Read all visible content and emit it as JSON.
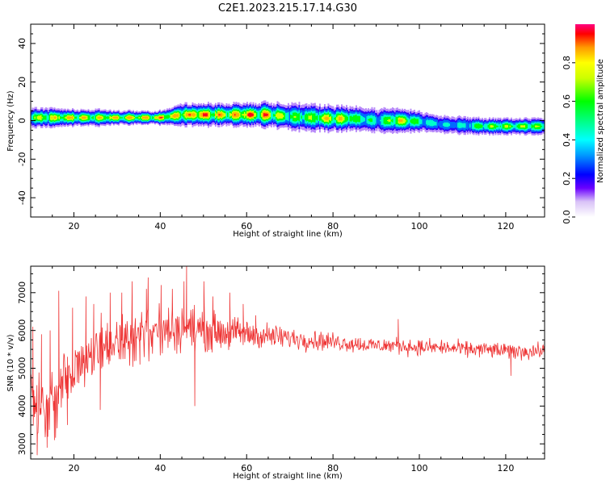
{
  "figure_title": "C2E1.2023.215.17.14.G30",
  "chart_data": [
    {
      "type": "heatmap",
      "title": "",
      "xlabel": "Height of straight line (km)",
      "ylabel": "Frequency (Hz)",
      "xlim": [
        10,
        129
      ],
      "ylim": [
        -50,
        50
      ],
      "xticks": [
        20,
        40,
        60,
        80,
        100,
        120
      ],
      "yticks": [
        -40,
        -20,
        0,
        20,
        40
      ],
      "ridge": {
        "name": "",
        "x": [
          10,
          15,
          20,
          25,
          30,
          35,
          40,
          45,
          50,
          55,
          60,
          65,
          70,
          75,
          80,
          85,
          90,
          95,
          100,
          105,
          110,
          115,
          120,
          125,
          129
        ],
        "freq": [
          1.5,
          1.5,
          1.5,
          1.5,
          1.5,
          1.5,
          1.5,
          3,
          3,
          3,
          3,
          3,
          2,
          1.5,
          1,
          1,
          0,
          0,
          -0.5,
          -2,
          -2.5,
          -3,
          -3,
          -3,
          -3
        ],
        "amplitude": [
          0.8,
          0.85,
          0.9,
          0.85,
          0.9,
          0.9,
          0.95,
          0.9,
          1.0,
          0.9,
          1.0,
          0.95,
          0.7,
          0.75,
          0.95,
          0.7,
          0.55,
          0.9,
          0.6,
          0.45,
          0.5,
          0.75,
          0.75,
          0.75,
          0.7
        ],
        "width": [
          3.5,
          3.5,
          3.0,
          3.0,
          2.5,
          2.5,
          2.5,
          4.0,
          4.0,
          4.0,
          4.0,
          4.5,
          5.0,
          5.0,
          4.5,
          4.5,
          4.5,
          4.5,
          4.0,
          3.5,
          3.5,
          3.0,
          3.0,
          3.0,
          3.0
        ]
      },
      "colorbar": {
        "label": "Normalized spectral amplitude",
        "ticks": [
          0.0,
          0.2,
          0.4,
          0.6,
          0.8
        ],
        "range": [
          0,
          1
        ]
      }
    },
    {
      "type": "line",
      "title": "",
      "xlabel": "Height of straight line (km)",
      "ylabel": "SNR (10 * v/v)",
      "xlim": [
        10,
        129
      ],
      "ylim": [
        2600,
        7700
      ],
      "xticks": [
        20,
        40,
        60,
        80,
        100,
        120
      ],
      "yticks": [
        3000,
        4000,
        5000,
        6000,
        7000
      ],
      "color": "#ee3333",
      "series": [
        {
          "name": "",
          "x": [
            10,
            12,
            14,
            16,
            18,
            20,
            22,
            24,
            26,
            28,
            30,
            32,
            34,
            36,
            38,
            40,
            42,
            44,
            46,
            48,
            50,
            55,
            60,
            65,
            70,
            75,
            80,
            85,
            90,
            95,
            100,
            105,
            110,
            115,
            120,
            125,
            129
          ],
          "mean": [
            4600,
            4000,
            3800,
            4200,
            4700,
            5000,
            5300,
            5400,
            5500,
            5600,
            5700,
            5800,
            5850,
            5900,
            5950,
            6000,
            6000,
            6050,
            6100,
            6050,
            6000,
            5950,
            5900,
            5850,
            5800,
            5750,
            5700,
            5650,
            5600,
            5600,
            5550,
            5550,
            5500,
            5500,
            5450,
            5450,
            5450
          ],
          "spread": [
            500,
            700,
            700,
            700,
            600,
            550,
            550,
            550,
            550,
            550,
            550,
            550,
            550,
            500,
            500,
            500,
            500,
            450,
            450,
            450,
            400,
            350,
            300,
            250,
            220,
            200,
            180,
            170,
            160,
            160,
            160,
            160,
            160,
            160,
            160,
            160,
            160
          ],
          "spikes": [
            [
              10.5,
              6100
            ],
            [
              11.5,
              2700
            ],
            [
              12.5,
              5900
            ],
            [
              13.8,
              2900
            ],
            [
              14.5,
              6000
            ],
            [
              15.5,
              3100
            ],
            [
              16.5,
              7050
            ],
            [
              18.5,
              3500
            ],
            [
              19.7,
              6600
            ],
            [
              22.8,
              6900
            ],
            [
              24.6,
              6700
            ],
            [
              26.1,
              3900
            ],
            [
              28.4,
              7000
            ],
            [
              31.1,
              7000
            ],
            [
              33.5,
              7300
            ],
            [
              35.3,
              5100
            ],
            [
              36.8,
              7100
            ],
            [
              37.2,
              7400
            ],
            [
              40.2,
              7200
            ],
            [
              42.8,
              7100
            ],
            [
              45.5,
              7300
            ],
            [
              46.1,
              7700
            ],
            [
              47.3,
              5600
            ],
            [
              48.0,
              4000
            ],
            [
              50.1,
              7300
            ],
            [
              52.2,
              6900
            ],
            [
              56.1,
              7000
            ],
            [
              59.2,
              6700
            ],
            [
              62.1,
              6400
            ],
            [
              95.1,
              6300
            ],
            [
              121.2,
              4800
            ]
          ]
        }
      ]
    }
  ]
}
